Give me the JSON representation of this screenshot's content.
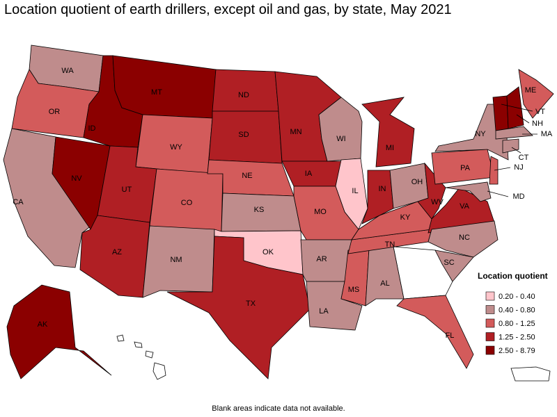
{
  "title": "Location quotient of earth drillers, except oil and gas, by state, May 2021",
  "note": "Blank areas indicate data not available.",
  "legend": {
    "title": "Location quotient",
    "items": [
      {
        "label": "0.20 - 0.40",
        "color": "#ffc5cb"
      },
      {
        "label": "0.40 - 0.80",
        "color": "#bf8c8c"
      },
      {
        "label": "0.80 - 1.25",
        "color": "#d35b5b"
      },
      {
        "label": "1.25 - 2.50",
        "color": "#b01f24"
      },
      {
        "label": "2.50 - 8.79",
        "color": "#8b0000"
      }
    ]
  },
  "states": [
    {
      "abbr": "WA",
      "class": 1
    },
    {
      "abbr": "OR",
      "class": 2
    },
    {
      "abbr": "CA",
      "class": 1
    },
    {
      "abbr": "NV",
      "class": 4
    },
    {
      "abbr": "ID",
      "class": 4
    },
    {
      "abbr": "MT",
      "class": 4
    },
    {
      "abbr": "WY",
      "class": 2
    },
    {
      "abbr": "UT",
      "class": 3
    },
    {
      "abbr": "CO",
      "class": 2
    },
    {
      "abbr": "AZ",
      "class": 3
    },
    {
      "abbr": "NM",
      "class": 1
    },
    {
      "abbr": "ND",
      "class": 3
    },
    {
      "abbr": "SD",
      "class": 3
    },
    {
      "abbr": "NE",
      "class": 2
    },
    {
      "abbr": "KS",
      "class": 1
    },
    {
      "abbr": "OK",
      "class": 0
    },
    {
      "abbr": "TX",
      "class": 3
    },
    {
      "abbr": "MN",
      "class": 3
    },
    {
      "abbr": "IA",
      "class": 3
    },
    {
      "abbr": "WI",
      "class": 1
    },
    {
      "abbr": "IL",
      "class": 0
    },
    {
      "abbr": "MO",
      "class": 2
    },
    {
      "abbr": "AR",
      "class": 1
    },
    {
      "abbr": "LA",
      "class": 1
    },
    {
      "abbr": "MS",
      "class": 2
    },
    {
      "abbr": "AL",
      "class": 1
    },
    {
      "abbr": "TN",
      "class": 2
    },
    {
      "abbr": "KY",
      "class": 2
    },
    {
      "abbr": "IN",
      "class": 3
    },
    {
      "abbr": "OH",
      "class": 1
    },
    {
      "abbr": "MI",
      "class": 3
    },
    {
      "abbr": "WV",
      "class": 3
    },
    {
      "abbr": "VA",
      "class": 3
    },
    {
      "abbr": "NC",
      "class": 1
    },
    {
      "abbr": "SC",
      "class": 1
    },
    {
      "abbr": "FL",
      "class": 2
    },
    {
      "abbr": "PA",
      "class": 2
    },
    {
      "abbr": "NY",
      "class": 1
    },
    {
      "abbr": "NJ",
      "class": 2
    },
    {
      "abbr": "MD",
      "class": 1
    },
    {
      "abbr": "ME",
      "class": 2
    },
    {
      "abbr": "VT",
      "class": 4
    },
    {
      "abbr": "NH",
      "class": 4
    },
    {
      "abbr": "MA",
      "class": 1
    },
    {
      "abbr": "CT",
      "class": 1
    },
    {
      "abbr": "AK",
      "class": 4
    }
  ]
}
